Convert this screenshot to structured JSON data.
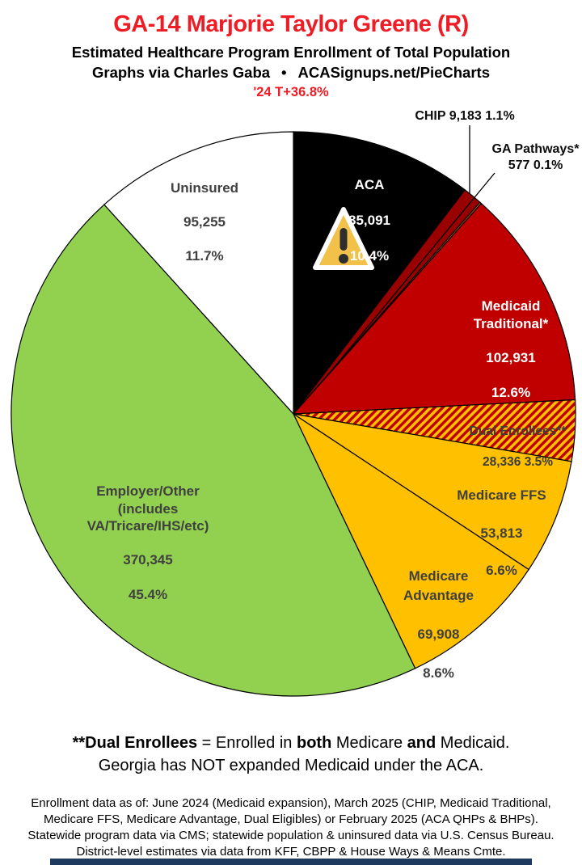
{
  "header": {
    "title": "GA-14 Marjorie Taylor Greene (R)",
    "subtitle": "Estimated Healthcare Program Enrollment of Total Population",
    "byline_left": "Graphs via Charles Gaba",
    "byline_bullet": "•",
    "byline_right": "ACASignups.net/PieCharts",
    "swing": "'24 T+36.8%"
  },
  "chart_data": {
    "type": "pie",
    "title": "Estimated Healthcare Program Enrollment of Total Population",
    "district": "GA-14 Marjorie Taylor Greene (R)",
    "legend_position": "labels-on-slices",
    "start_angle": "12 o'clock, clockwise",
    "slices": [
      {
        "name": "ACA",
        "name_display": "ACA",
        "value": 85091,
        "value_text": "85,091",
        "pct": 10.4,
        "pct_text": "10.4%",
        "color": "#000000",
        "text_color": "#ffffff"
      },
      {
        "name": "CHIP",
        "value": 9183,
        "value_text": "9,183",
        "pct": 1.1,
        "pct_text": "1.1%",
        "color": "#990000"
      },
      {
        "name": "GA Pathways*",
        "value": 577,
        "value_text": "577",
        "pct": 0.1,
        "pct_text": "0.1%",
        "color": "#cc6600"
      },
      {
        "name": "Medicaid Traditional*",
        "name_display": "Medicaid\nTraditional*",
        "value": 102931,
        "value_text": "102,931",
        "pct": 12.6,
        "pct_text": "12.6%",
        "color": "#c00000",
        "text_color": "#ffffff"
      },
      {
        "name": "Dual Enrollees**",
        "value": 28336,
        "value_text": "28,336",
        "pct": 3.5,
        "pct_text": "3.5%",
        "color": "hatch",
        "hatch_colors": [
          "#c00000",
          "#ffc000"
        ]
      },
      {
        "name": "Medicare FFS",
        "value": 53813,
        "value_text": "53,813",
        "pct": 6.6,
        "pct_text": "6.6%",
        "color": "#ffc000"
      },
      {
        "name": "Medicare Advantage",
        "name_display": "Medicare\nAdvantage",
        "value": 69908,
        "value_text": "69,908",
        "pct": 8.6,
        "pct_text": "8.6%",
        "color": "#ffc000"
      },
      {
        "name": "Employer/Other (includes VA/Tricare/IHS/etc)",
        "name_display": "Employer/Other\n(includes\nVA/Tricare/IHS/etc)",
        "value": 370345,
        "value_text": "370,345",
        "pct": 45.4,
        "pct_text": "45.4%",
        "color": "#92d050"
      },
      {
        "name": "Uninsured",
        "value": 95255,
        "value_text": "95,255",
        "pct": 11.7,
        "pct_text": "11.7%",
        "color": "#ffffff"
      }
    ],
    "annotation_icon": "warning-triangle on ACA slice"
  },
  "footnotes": {
    "dual_note": {
      "p1": "**Dual Enrollees",
      "p2": " = Enrolled in ",
      "p3": "both",
      "p4": " Medicare ",
      "p5": "and",
      "p6": " Medicaid."
    },
    "medicaid_note": "Georgia has NOT expanded Medicaid under the ACA.",
    "source_lines": [
      "Enrollment data as of: June 2024 (Medicaid expansion), March 2025 (CHIP, Medicaid Traditional,",
      "Medicare FFS, Medicare Advantage, Dual Eligibles) or February 2025 (ACA QHPs & BHPs).",
      "Statewide program data via CMS; statewide population & uninsured data via U.S. Census Bureau.",
      "District-level estimates via data from KFF, CBPP & House Ways & Means Cmte."
    ]
  },
  "colors": {
    "accent_red_text": "#ee1c24",
    "medicaid_red": "#c00000",
    "chip_dark_red": "#990000",
    "medicare_gold": "#ffc000",
    "employer_green": "#92d050",
    "label_gray": "#404040",
    "bottom_bar_navy": "#1e3a5f"
  }
}
